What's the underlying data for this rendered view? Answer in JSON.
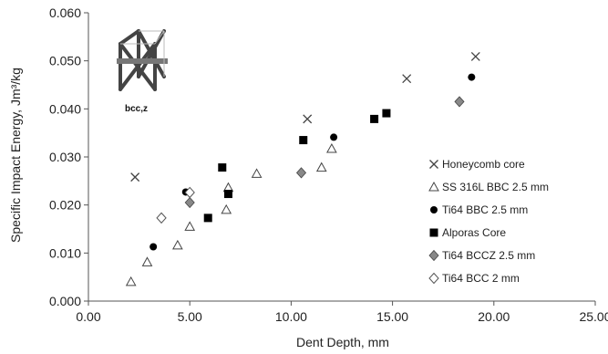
{
  "chart_data": {
    "type": "scatter",
    "xlabel": "Dent Depth, mm",
    "ylabel": "Specific Impact Energy, Jm³/kg",
    "xlim": [
      0,
      25
    ],
    "ylim": [
      0,
      0.06
    ],
    "x_ticks": [
      "0.00",
      "5.00",
      "10.00",
      "15.00",
      "20.00",
      "25.00"
    ],
    "y_ticks": [
      "0.000",
      "0.010",
      "0.020",
      "0.030",
      "0.040",
      "0.050",
      "0.060"
    ],
    "grid": false,
    "legend_position": "right",
    "inset_label": "bcc,z",
    "series": [
      {
        "name": "Honeycomb core",
        "marker": "x",
        "color": "#444444",
        "points": [
          [
            2.3,
            0.0258
          ],
          [
            10.8,
            0.0379
          ],
          [
            15.7,
            0.0463
          ],
          [
            19.1,
            0.0509
          ]
        ]
      },
      {
        "name": "SS 316L BBC 2.5 mm",
        "marker": "triangle-open",
        "color": "#444444",
        "points": [
          [
            2.1,
            0.004
          ],
          [
            2.9,
            0.0081
          ],
          [
            4.4,
            0.0116
          ],
          [
            5.0,
            0.0155
          ],
          [
            6.8,
            0.019
          ],
          [
            6.9,
            0.0236
          ],
          [
            8.3,
            0.0265
          ],
          [
            11.5,
            0.0278
          ],
          [
            12.0,
            0.0317
          ]
        ]
      },
      {
        "name": "Ti64 BBC 2.5 mm",
        "marker": "circle-filled",
        "color": "#000000",
        "points": [
          [
            3.2,
            0.0113
          ],
          [
            4.8,
            0.0227
          ],
          [
            12.1,
            0.0341
          ],
          [
            18.9,
            0.0466
          ]
        ]
      },
      {
        "name": "Alporas Core",
        "marker": "square-filled",
        "color": "#000000",
        "points": [
          [
            5.9,
            0.0173
          ],
          [
            6.6,
            0.0278
          ],
          [
            6.9,
            0.0223
          ],
          [
            10.6,
            0.0335
          ],
          [
            14.1,
            0.0379
          ],
          [
            14.7,
            0.0391
          ]
        ]
      },
      {
        "name": "Ti64 BCCZ 2.5 mm",
        "marker": "diamond-filled",
        "color": "#888888",
        "points": [
          [
            5.0,
            0.0205
          ],
          [
            10.5,
            0.0267
          ],
          [
            18.3,
            0.0415
          ]
        ]
      },
      {
        "name": "Ti64 BCC 2 mm",
        "marker": "diamond-open",
        "color": "#555555",
        "points": [
          [
            3.6,
            0.0173
          ],
          [
            5.0,
            0.0226
          ]
        ]
      }
    ]
  }
}
